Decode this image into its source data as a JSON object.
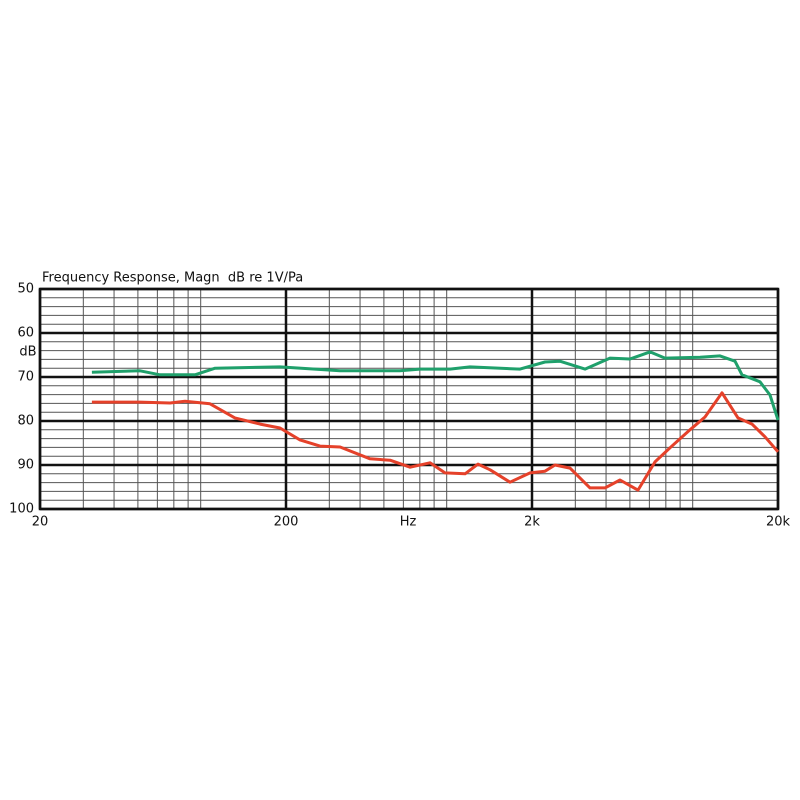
{
  "chart_data": {
    "type": "line",
    "title": "Frequency Response, Magn  dB re 1V/Pa",
    "x_label": "Hz",
    "y_label": "dB",
    "log_x": true,
    "grid": true,
    "xlim": [
      20,
      20000
    ],
    "xticks": [
      20,
      200,
      {
        "value": 2000,
        "label": "2k"
      },
      {
        "value": 20000,
        "label": "20k"
      }
    ],
    "ylim": [
      100,
      50
    ],
    "yticks": [
      50,
      60,
      70,
      80,
      90,
      100
    ],
    "series": [
      {
        "name": "green",
        "color": "#1fa06b",
        "x": [
          32.5,
          51,
          61.5,
          85.3,
          103,
          189,
          332,
          581,
          701,
          928,
          1119,
          1787,
          2259,
          2598,
          3285,
          4151,
          5004,
          6036,
          6945,
          9638,
          11625,
          13375,
          14278,
          16901,
          18560,
          20000
        ],
        "values": [
          68.9,
          68.6,
          69.5,
          69.5,
          68,
          67.7,
          68.6,
          68.6,
          68.2,
          68.2,
          67.7,
          68.2,
          66.6,
          66.4,
          68.2,
          65.7,
          65.9,
          64.3,
          65.7,
          65.5,
          65.2,
          66.4,
          69.5,
          71.1,
          74.1,
          79.8
        ]
      },
      {
        "name": "red",
        "color": "#e5412a",
        "x": [
          32.5,
          51,
          67.5,
          77.7,
          98.2,
          124,
          157,
          189,
          228,
          275,
          332,
          439,
          530,
          639,
          770,
          886,
          1069,
          1207,
          1351,
          1628,
          1964,
          2259,
          2480,
          2855,
          3443,
          3961,
          4559,
          5395,
          6325,
          7279,
          8777,
          10100,
          11840,
          13750,
          15680,
          17710,
          20000
        ],
        "values": [
          75.7,
          75.7,
          75.9,
          75.5,
          76.1,
          79.3,
          80.7,
          81.6,
          84.3,
          85.7,
          85.9,
          88.6,
          88.9,
          90.5,
          89.5,
          91.8,
          92,
          89.8,
          91.1,
          93.9,
          91.8,
          91.4,
          90,
          90.7,
          95.2,
          95.2,
          93.4,
          95.7,
          89.3,
          86.1,
          82,
          79.1,
          73.6,
          79.3,
          80.7,
          83.6,
          87
        ]
      }
    ]
  }
}
